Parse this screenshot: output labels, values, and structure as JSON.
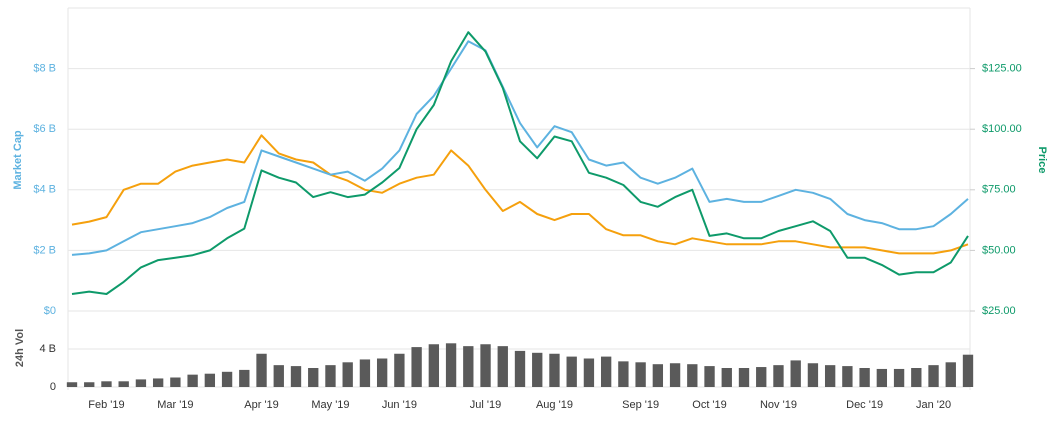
{
  "chart_data": [
    {
      "type": "line",
      "yaxis_title": "Market Cap",
      "y2axis_title": "Price",
      "categories": [
        null,
        null,
        "Feb '19",
        null,
        null,
        null,
        "Mar '19",
        null,
        null,
        null,
        null,
        "Apr '19",
        null,
        null,
        null,
        "May '19",
        null,
        null,
        null,
        "Jun '19",
        null,
        null,
        null,
        null,
        "Jul '19",
        null,
        null,
        null,
        "Aug '19",
        null,
        null,
        null,
        null,
        "Sep '19",
        null,
        null,
        null,
        "Oct '19",
        null,
        null,
        null,
        "Nov '19",
        null,
        null,
        null,
        null,
        "Dec '19",
        null,
        null,
        null,
        "Jan '20",
        null,
        null
      ],
      "ylim": [
        0,
        10
      ],
      "yticks": [
        {
          "value": 0,
          "label": "$0"
        },
        {
          "value": 2,
          "label": "$2 B"
        },
        {
          "value": 4,
          "label": "$4 B"
        },
        {
          "value": 6,
          "label": "$6 B"
        },
        {
          "value": 8,
          "label": "$8 B"
        }
      ],
      "y2lim": [
        25,
        150
      ],
      "y2ticks": [
        {
          "value": 25,
          "label": "$25.00"
        },
        {
          "value": 50,
          "label": "$50.00"
        },
        {
          "value": 75,
          "label": "$75.00"
        },
        {
          "value": 100,
          "label": "$100.00"
        },
        {
          "value": 125,
          "label": "$125.00"
        }
      ],
      "grid": true,
      "series": [
        {
          "color": "#f5a00d",
          "axis": "y",
          "values": [
            2.85,
            2.95,
            3.1,
            4.0,
            4.2,
            4.2,
            4.6,
            4.8,
            4.9,
            5.0,
            4.9,
            5.8,
            5.2,
            5.0,
            4.9,
            4.5,
            4.3,
            4.0,
            3.9,
            4.2,
            4.4,
            4.5,
            5.3,
            4.8,
            4.0,
            3.3,
            3.6,
            3.2,
            3.0,
            3.2,
            3.2,
            2.7,
            2.5,
            2.5,
            2.3,
            2.2,
            2.4,
            2.3,
            2.2,
            2.2,
            2.2,
            2.3,
            2.3,
            2.2,
            2.1,
            2.1,
            2.1,
            2.0,
            1.9,
            1.9,
            1.9,
            2.0,
            2.2
          ]
        },
        {
          "color": "#5db2e0",
          "axis": "y",
          "values": [
            1.85,
            1.9,
            2.0,
            2.3,
            2.6,
            2.7,
            2.8,
            2.9,
            3.1,
            3.4,
            3.6,
            5.3,
            5.1,
            4.9,
            4.7,
            4.5,
            4.6,
            4.3,
            4.7,
            5.3,
            6.5,
            7.1,
            8.0,
            8.9,
            8.6,
            7.4,
            6.2,
            5.4,
            6.1,
            5.9,
            5.0,
            4.8,
            4.9,
            4.4,
            4.2,
            4.4,
            4.7,
            3.6,
            3.7,
            3.6,
            3.6,
            3.8,
            4.0,
            3.9,
            3.7,
            3.2,
            3.0,
            2.9,
            2.7,
            2.7,
            2.8,
            3.2,
            3.7
          ]
        },
        {
          "color": "#0e9a6a",
          "axis": "y2",
          "values": [
            32,
            33,
            32,
            37,
            43,
            46,
            47,
            48,
            50,
            55,
            59,
            83,
            80,
            78,
            72,
            74,
            72,
            73,
            78,
            84,
            100,
            110,
            128,
            140,
            132,
            117,
            95,
            88,
            97,
            95,
            82,
            80,
            77,
            70,
            68,
            72,
            75,
            56,
            57,
            55,
            55,
            58,
            60,
            62,
            58,
            47,
            47,
            44,
            40,
            41,
            41,
            45,
            56
          ]
        }
      ]
    },
    {
      "type": "bar",
      "yaxis_title": "24h Vol",
      "color": "#5a5a5a",
      "ylim": [
        0,
        8
      ],
      "yticks": [
        0,
        {
          "value": 4,
          "label": "4 B"
        }
      ],
      "values": [
        0.5,
        0.5,
        0.6,
        0.6,
        0.8,
        0.9,
        1.0,
        1.3,
        1.4,
        1.6,
        1.8,
        3.5,
        2.3,
        2.2,
        2.0,
        2.3,
        2.6,
        2.9,
        3.0,
        3.5,
        4.2,
        4.5,
        4.6,
        4.3,
        4.5,
        4.3,
        3.8,
        3.6,
        3.5,
        3.2,
        3.0,
        3.2,
        2.7,
        2.6,
        2.4,
        2.5,
        2.4,
        2.2,
        2.0,
        2.0,
        2.1,
        2.3,
        2.8,
        2.5,
        2.3,
        2.2,
        2.0,
        1.9,
        1.9,
        2.0,
        2.3,
        2.6,
        3.4
      ]
    }
  ]
}
